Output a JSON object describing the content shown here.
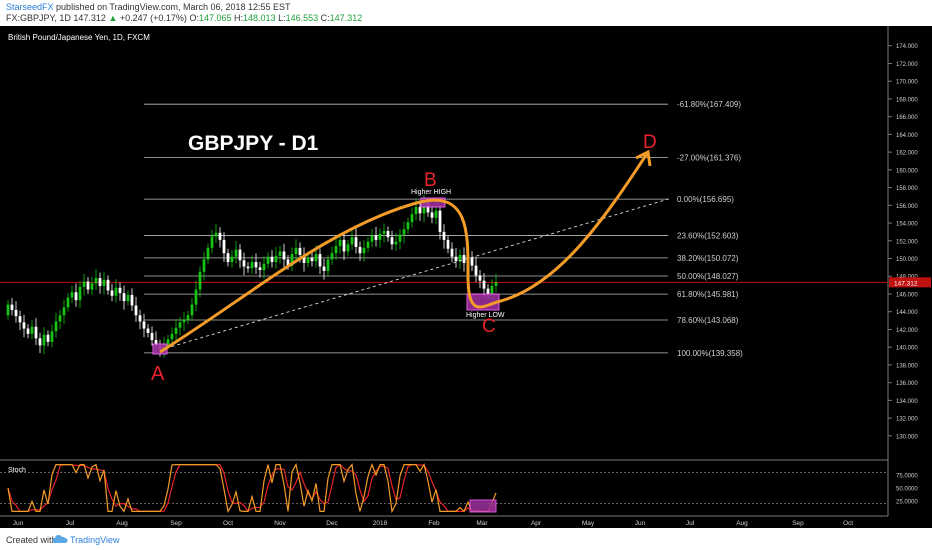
{
  "header": {
    "author": "StarseedFX",
    "published": "published on TradingView.com, March 06, 2018 12:55 EST",
    "symbol": "FX:GBPJPY, 1D",
    "price": "147.312",
    "change": "+0.247 (+0.17%)",
    "o_label": "O:",
    "o_value": "147.065",
    "h_label": "H:",
    "h_value": "148.013",
    "l_label": "L:",
    "l_value": "146.553",
    "c_label": "C:",
    "c_value": "147.312"
  },
  "chart_title": "British Pound/Japanese Yen, 1D, FXCM",
  "overlay_title": "GBPJPY - D1",
  "labels": {
    "A": "A",
    "B": "B",
    "C": "C",
    "D": "D",
    "higher_high": "Higher HIGH",
    "higher_low": "Higher LOW"
  },
  "current_price": "147.312",
  "colors": {
    "up": "#16c216",
    "down": "#ffffff",
    "path": "#f39c28",
    "labels": "#e8232b",
    "box": "#9b2f9b",
    "price_line": "#c11010"
  },
  "chart_data": {
    "type": "candlestick",
    "title": "British Pound/Japanese Yen, 1D, FXCM",
    "ylim": [
      127.5,
      176.0
    ],
    "y_ticks": [
      "174.000",
      "172.000",
      "170.000",
      "168.000",
      "166.000",
      "164.000",
      "162.000",
      "160.000",
      "158.000",
      "156.000",
      "154.000",
      "152.000",
      "150.000",
      "148.000",
      "146.000",
      "144.000",
      "142.000",
      "140.000",
      "138.000",
      "136.000",
      "134.000",
      "132.000",
      "130.000"
    ],
    "x_ticks": [
      "Jun",
      "Jul",
      "Aug",
      "Sep",
      "Oct",
      "Nov",
      "Dec",
      "2018",
      "Feb",
      "Mar",
      "Apr",
      "May",
      "Jun",
      "Jul",
      "Aug",
      "Sep",
      "Oct"
    ],
    "fibonacci": [
      {
        "label": "-61.80%(167.409)",
        "value": 167.409
      },
      {
        "label": "-27.00%(161.376)",
        "value": 161.376
      },
      {
        "label": "0.00%(156.695)",
        "value": 156.695
      },
      {
        "label": "23.60%(152.603)",
        "value": 152.603
      },
      {
        "label": "38.20%(150.072)",
        "value": 150.072
      },
      {
        "label": "50.00%(148.027)",
        "value": 148.027
      },
      {
        "label": "61.80%(145.981)",
        "value": 145.981
      },
      {
        "label": "78.60%(143.068)",
        "value": 143.068
      },
      {
        "label": "100.00%(139.358)",
        "value": 139.358
      }
    ],
    "closes": [
      144.8,
      144.2,
      143.5,
      142.8,
      142.1,
      141.5,
      142.3,
      141.0,
      140.2,
      141.4,
      140.6,
      141.8,
      142.9,
      143.6,
      144.5,
      145.6,
      146.2,
      145.3,
      146.8,
      147.4,
      146.5,
      147.2,
      147.8,
      146.9,
      147.6,
      146.4,
      145.8,
      146.7,
      146.1,
      145.2,
      145.9,
      144.7,
      143.6,
      142.9,
      142.1,
      141.6,
      140.8,
      140.2,
      139.8,
      140.3,
      140.9,
      141.5,
      142.2,
      142.8,
      143.1,
      143.6,
      144.8,
      146.5,
      148.5,
      149.9,
      151.2,
      152.5,
      152.9,
      152.1,
      150.6,
      149.6,
      150.2,
      151.0,
      149.8,
      149.1,
      148.9,
      149.6,
      149.0,
      148.7,
      149.4,
      150.2,
      149.6,
      150.3,
      150.8,
      149.9,
      149.2,
      150.5,
      151.2,
      150.4,
      149.5,
      150.1,
      149.7,
      150.5,
      149.1,
      148.6,
      149.9,
      150.6,
      151.4,
      152.1,
      150.8,
      151.6,
      152.4,
      151.3,
      150.6,
      151.2,
      151.9,
      152.6,
      152.1,
      152.8,
      153.1,
      152.4,
      151.6,
      151.9,
      152.7,
      153.3,
      154.1,
      155.0,
      155.8,
      155.1,
      156.3,
      155.2,
      154.6,
      155.4,
      153.0,
      152.1,
      151.1,
      150.2,
      149.7,
      150.4,
      149.5,
      150.1,
      149.2,
      148.1,
      147.5,
      146.6,
      146.0,
      146.9,
      147.3
    ],
    "stochastic": {
      "name": "Stoch",
      "levels": [
        80,
        20
      ],
      "y_ticks": [
        "75.0000",
        "50.0000",
        "25.0000"
      ]
    }
  }
}
